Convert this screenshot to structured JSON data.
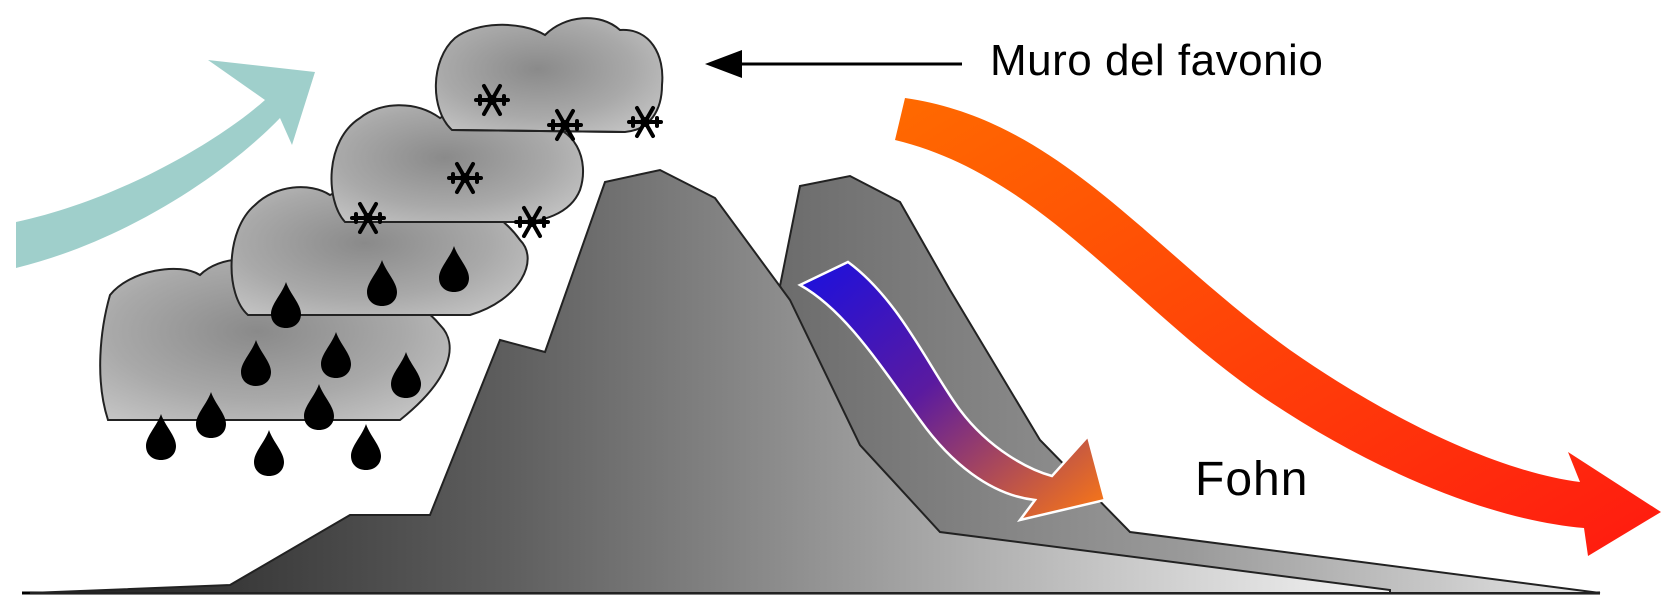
{
  "labels": {
    "wall": "Muro del favonio",
    "fohn": "Fohn"
  },
  "colors": {
    "cold_air": "#9fcfcb",
    "warm_air_start": "#ff6a00",
    "warm_air_end": "#ff1a10",
    "descending_start": "#1a10e0",
    "descending_end": "#ff7a10",
    "cloud": "#a8a8a8",
    "precip": "#000000"
  },
  "icons": [
    "cloud-icon",
    "snowflake-icon",
    "raindrop-icon",
    "arrow-icon"
  ]
}
